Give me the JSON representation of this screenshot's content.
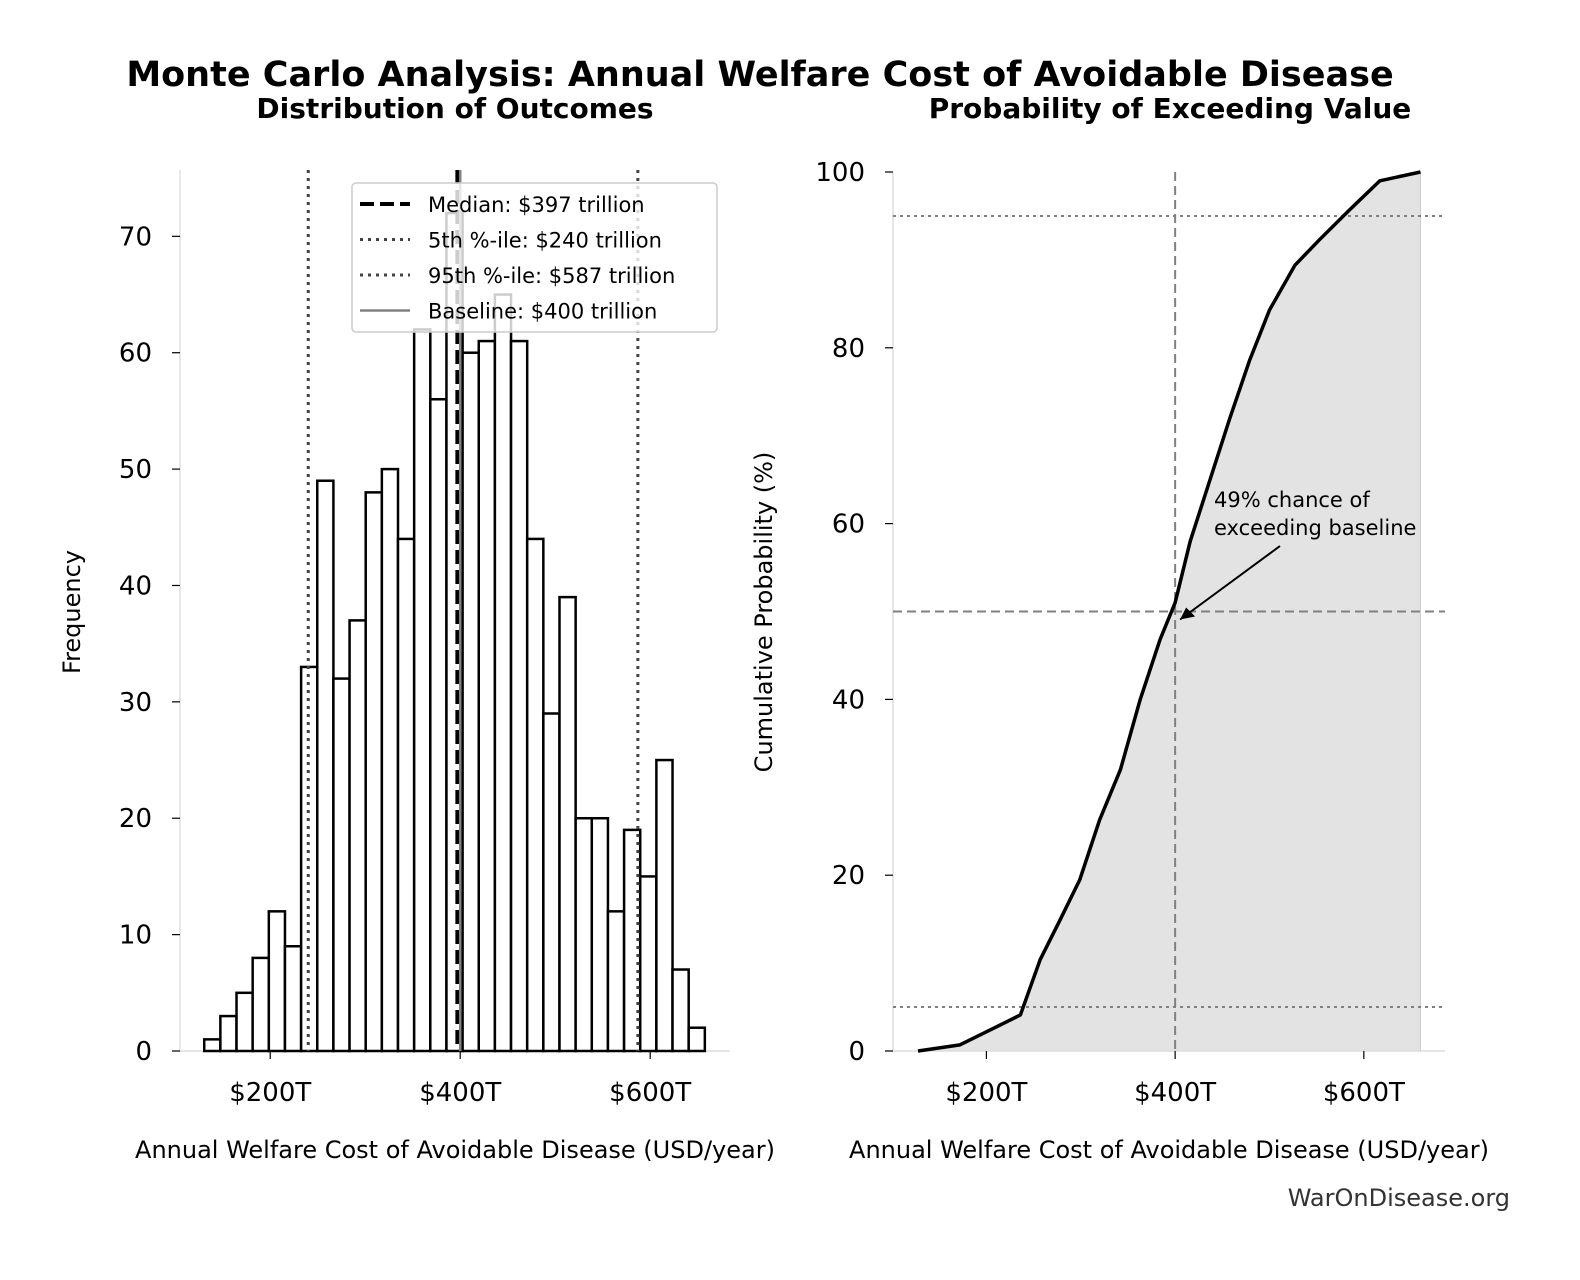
{
  "title": "Monte Carlo Analysis: Annual Welfare Cost of Avoidable Disease",
  "watermark": "WarOnDisease.org",
  "chart_data": [
    {
      "type": "bar",
      "title": "Distribution of Outcomes",
      "xlabel": "Annual Welfare Cost of Avoidable Disease (USD/year)",
      "ylabel": "Frequency",
      "x_tick_values": [
        200,
        400,
        600
      ],
      "x_tick_labels": [
        "$200T",
        "$400T",
        "$600T"
      ],
      "y_ticks": [
        0,
        10,
        20,
        30,
        40,
        50,
        60,
        70
      ],
      "xlim": [
        105,
        684
      ],
      "ylim": [
        0,
        75.7
      ],
      "bin_start": 130.5,
      "bin_width": 17.0,
      "values": [
        1,
        3,
        5,
        8,
        12,
        9,
        33,
        49,
        32,
        37,
        48,
        50,
        44,
        62,
        56,
        72,
        60,
        61,
        65,
        61,
        44,
        29,
        39,
        20,
        20,
        12,
        19,
        15,
        25,
        7,
        2
      ],
      "reference_lines": [
        {
          "label": "Median: $397 trillion",
          "x": 397,
          "style": "dashed",
          "color": "#000000"
        },
        {
          "label": "5th %-ile: $240 trillion",
          "x": 240,
          "style": "dotted",
          "color": "#444444"
        },
        {
          "label": "95th %-ile: $587 trillion",
          "x": 587,
          "style": "dotted",
          "color": "#444444"
        },
        {
          "label": "Baseline: $400 trillion",
          "x": 400,
          "style": "solid",
          "color": "#808080"
        }
      ],
      "legend_position": "top-right",
      "grid": false
    },
    {
      "type": "area",
      "title": "Probability of Exceeding Value",
      "xlabel": "Annual Welfare Cost of Avoidable Disease (USD/year)",
      "ylabel": "Cumulative Probability (%)",
      "x_tick_values": [
        200,
        400,
        600
      ],
      "x_tick_labels": [
        "$200T",
        "$400T",
        "$600T"
      ],
      "y_ticks": [
        0,
        20,
        40,
        60,
        80,
        100
      ],
      "xlim": [
        101,
        686
      ],
      "ylim": [
        0,
        100
      ],
      "x": [
        127.5,
        172,
        204,
        236,
        257,
        278,
        299,
        320,
        342,
        363,
        384,
        400,
        416,
        437,
        458,
        479,
        500,
        527,
        553,
        585,
        617,
        660
      ],
      "y": [
        0,
        0.7,
        2.4,
        4.1,
        10.4,
        14.9,
        19.5,
        26.3,
        32,
        40,
        46.8,
        51,
        58,
        65,
        72,
        78.6,
        84.3,
        89.4,
        92.3,
        95.7,
        99,
        100
      ],
      "hlines": [
        5,
        50,
        95
      ],
      "vline": 400,
      "annotation": {
        "text_line1": "49% chance of",
        "text_line2": "exceeding baseline",
        "point_x": 400,
        "point_y": 50
      },
      "fill_color": "#e3e3e3",
      "grid": false
    }
  ]
}
